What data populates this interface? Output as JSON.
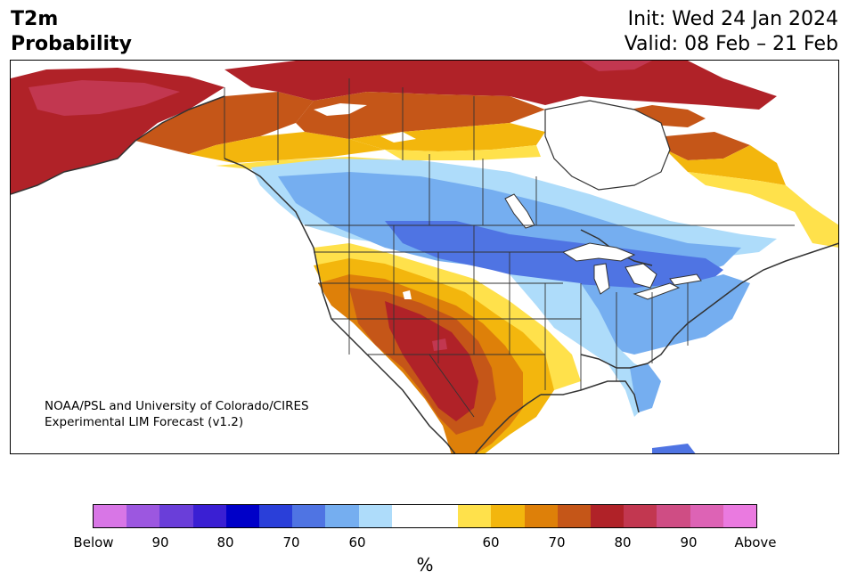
{
  "title_left": {
    "line1": "T2m",
    "line2": "Probability"
  },
  "title_right": {
    "init": "Init: Wed 24 Jan 2024",
    "valid": "Valid: 08 Feb – 21 Feb"
  },
  "credit": {
    "line1": "NOAA/PSL and University of Colorado/CIRES",
    "line2": "Experimental LIM Forecast (v1.2)"
  },
  "colorbar": {
    "unit": "%",
    "colors": [
      "#d876e6",
      "#9c57e0",
      "#6a3ed9",
      "#3a1fd3",
      "#0000c8",
      "#2a3fd9",
      "#4f74e3",
      "#75aef0",
      "#aedcfa",
      "#ffffff",
      "#ffffff",
      "#ffe14b",
      "#f3b60d",
      "#de8009",
      "#c55618",
      "#b02228",
      "#c23750",
      "#cf4d84",
      "#dd63b5",
      "#ea7ae0"
    ],
    "tick_labels": [
      "Below",
      "90",
      "80",
      "70",
      "60",
      "60",
      "70",
      "80",
      "90",
      "Above"
    ]
  },
  "legend_colors": {
    "above_80": "#b02228",
    "above_70": "#c55618",
    "above_65": "#de8009",
    "above_60": "#f3b60d",
    "above_55": "#ffe14b",
    "below_55": "#aedcfa",
    "below_60": "#75aef0",
    "below_70": "#4f74e3",
    "above_90": "#c23750"
  }
}
